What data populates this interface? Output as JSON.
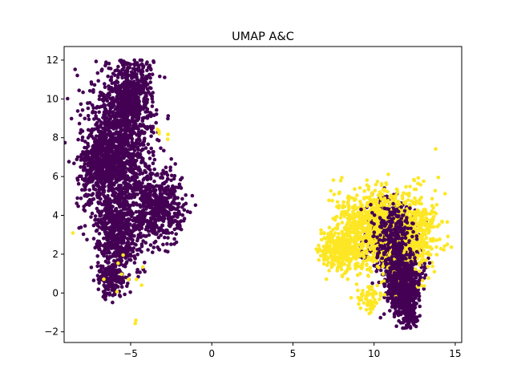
{
  "chart_data": {
    "type": "scatter",
    "title": "UMAP A&C",
    "xlabel": "",
    "ylabel": "",
    "xlim": [
      -9.1,
      15.4
    ],
    "ylim": [
      -2.55,
      12.7
    ],
    "xticks": [
      -5,
      0,
      5,
      10,
      15
    ],
    "yticks": [
      -2,
      0,
      2,
      4,
      6,
      8,
      10,
      12
    ],
    "grid": false,
    "legend": "none",
    "series": [
      {
        "color": "#440154",
        "clusters": [
          {
            "cx": -5.8,
            "cy": 7.2,
            "sx": 1.0,
            "sy": 2.0,
            "n": 1500
          },
          {
            "cx": -4.9,
            "cy": 10.2,
            "sx": 0.6,
            "sy": 0.9,
            "n": 500
          },
          {
            "cx": -3.2,
            "cy": 4.5,
            "sx": 0.8,
            "sy": 0.9,
            "n": 500
          },
          {
            "cx": -5.7,
            "cy": 3.0,
            "sx": 0.7,
            "sy": 1.1,
            "n": 500
          },
          {
            "cx": -6.3,
            "cy": 0.8,
            "sx": 0.4,
            "sy": 0.5,
            "n": 150
          },
          {
            "cx": -7.2,
            "cy": 6.6,
            "sx": 0.5,
            "sy": 0.8,
            "n": 200
          },
          {
            "cx": 11.8,
            "cy": 0.4,
            "sx": 0.42,
            "sy": 0.75,
            "n": 650
          },
          {
            "cx": 11.3,
            "cy": 2.3,
            "sx": 0.7,
            "sy": 0.9,
            "n": 450
          },
          {
            "cx": 10.6,
            "cy": 3.4,
            "sx": 0.55,
            "sy": 0.7,
            "n": 220
          },
          {
            "cx": 12.3,
            "cy": -1.2,
            "sx": 0.2,
            "sy": 0.3,
            "n": 90
          }
        ]
      },
      {
        "color": "#fde725",
        "clusters": [
          {
            "cx": 10.2,
            "cy": 3.4,
            "sx": 1.3,
            "sy": 1.0,
            "n": 900
          },
          {
            "cx": 12.6,
            "cy": 3.0,
            "sx": 0.7,
            "sy": 1.1,
            "n": 350
          },
          {
            "cx": 8.0,
            "cy": 2.2,
            "sx": 0.6,
            "sy": 0.5,
            "n": 300
          },
          {
            "cx": 9.6,
            "cy": -0.3,
            "sx": 0.35,
            "sy": 0.35,
            "n": 60
          },
          {
            "cx": -5.7,
            "cy": 1.0,
            "sx": 1.4,
            "sy": 1.5,
            "n": 12
          },
          {
            "cx": -3.0,
            "cy": 8.3,
            "sx": 0.5,
            "sy": 0.6,
            "n": 5
          }
        ]
      },
      {
        "color": "#440154",
        "clusters": [
          {
            "cx": 11.8,
            "cy": 0.6,
            "sx": 0.45,
            "sy": 0.9,
            "n": 350
          },
          {
            "cx": 11.2,
            "cy": 3.0,
            "sx": 0.6,
            "sy": 0.8,
            "n": 200
          }
        ]
      }
    ]
  }
}
